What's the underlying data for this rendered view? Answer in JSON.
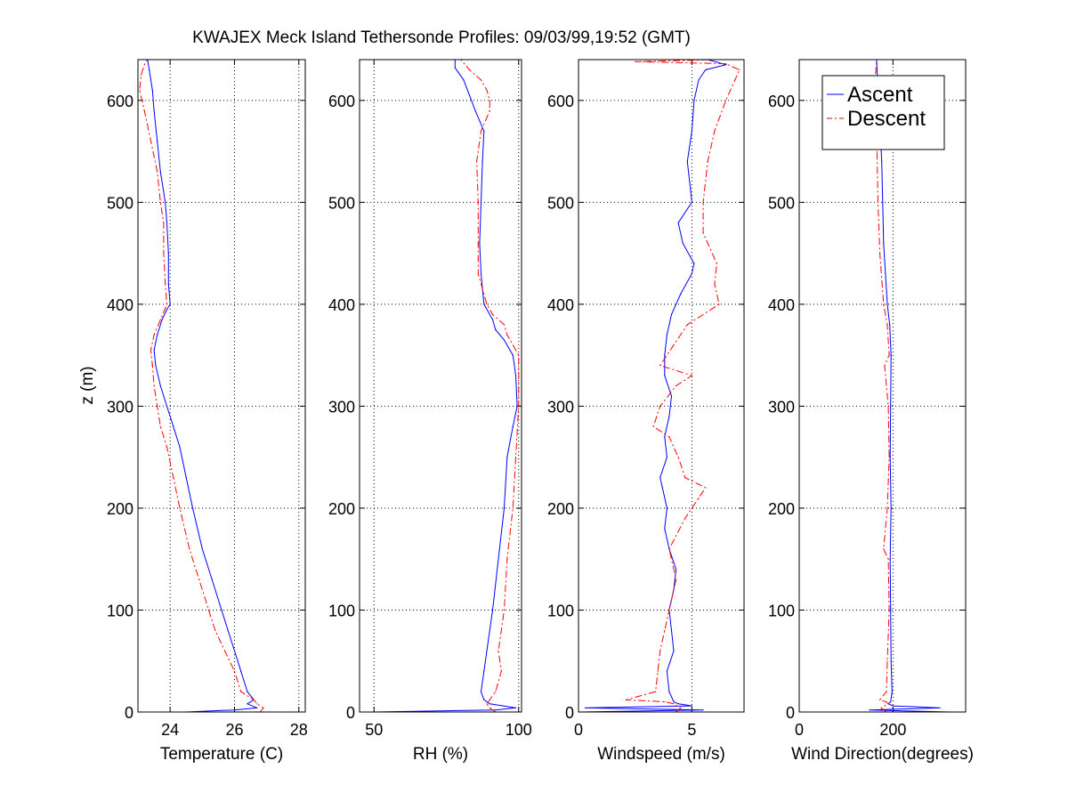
{
  "chart_data": {
    "type": "line",
    "title": "KWAJEX Meck Island Tethersonde Profiles: 09/03/99,19:52 (GMT)",
    "ylabel": "z (m)",
    "ylim": [
      0,
      640
    ],
    "yticks": [
      0,
      100,
      200,
      300,
      400,
      500,
      600
    ],
    "grid": true,
    "legend": {
      "panel": 3,
      "placement": "top-right",
      "entries": [
        {
          "name": "Ascent",
          "color": "#0000ff",
          "style": "solid"
        },
        {
          "name": "Descent",
          "color": "#ff0000",
          "style": "dashdot"
        }
      ]
    },
    "panels": [
      {
        "xlabel": "Temperature (C)",
        "xlim": [
          23.0,
          28.2
        ],
        "xticks": [
          24,
          26,
          28
        ],
        "series": [
          {
            "name": "Ascent",
            "z": [
              0,
              2,
              4,
              8,
              12,
              20,
              40,
              60,
              80,
              100,
              130,
              160,
              200,
              230,
              260,
              280,
              300,
              320,
              340,
              355,
              370,
              385,
              395,
              400,
              420,
              450,
              480,
              500,
              530,
              560,
              590,
              610,
              630,
              640
            ],
            "values": [
              24.5,
              26.0,
              26.7,
              26.4,
              26.6,
              26.4,
              26.2,
              26.0,
              25.8,
              25.6,
              25.3,
              25.0,
              24.7,
              24.5,
              24.3,
              24.1,
              23.9,
              23.7,
              23.55,
              23.5,
              23.6,
              23.75,
              23.9,
              24.0,
              23.95,
              23.95,
              23.9,
              23.85,
              23.7,
              23.6,
              23.5,
              23.45,
              23.35,
              23.3
            ]
          },
          {
            "name": "Descent",
            "z": [
              0,
              4,
              8,
              12,
              20,
              40,
              60,
              80,
              100,
              130,
              160,
              200,
              230,
              260,
              280,
              300,
              320,
              340,
              355,
              370,
              385,
              400,
              420,
              450,
              480,
              500,
              530,
              560,
              590,
              610,
              625,
              635,
              640
            ],
            "values": [
              26.8,
              26.9,
              26.7,
              26.6,
              26.2,
              26.0,
              25.7,
              25.4,
              25.2,
              24.9,
              24.6,
              24.3,
              24.1,
              23.9,
              23.7,
              23.6,
              23.5,
              23.45,
              23.4,
              23.5,
              23.7,
              23.9,
              23.85,
              23.8,
              23.8,
              23.7,
              23.6,
              23.4,
              23.2,
              23.05,
              23.1,
              23.2,
              23.3
            ]
          }
        ]
      },
      {
        "xlabel": "RH (%)",
        "xlim": [
          45,
          101
        ],
        "xticks": [
          50,
          100
        ],
        "series": [
          {
            "name": "Ascent",
            "z": [
              0,
              2,
              4,
              8,
              12,
              20,
              40,
              60,
              100,
              150,
              200,
              250,
              280,
              300,
              330,
              350,
              365,
              375,
              385,
              400,
              430,
              460,
              500,
              540,
              570,
              590,
              605,
              620,
              628,
              632,
              640
            ],
            "values": [
              50,
              92,
              99,
              90,
              88,
              87,
              88,
              89,
              91,
              93,
              95,
              96,
              98,
              99.5,
              99,
              98,
              95,
              92,
              91,
              88,
              87,
              86.5,
              87,
              87.5,
              88,
              85,
              83,
              81,
              79,
              78,
              78
            ]
          },
          {
            "name": "Descent",
            "z": [
              0,
              4,
              8,
              12,
              20,
              40,
              60,
              100,
              150,
              200,
              250,
              300,
              350,
              370,
              380,
              390,
              400,
              430,
              460,
              500,
              540,
              570,
              590,
              600,
              610,
              620,
              630,
              640
            ],
            "values": [
              92,
              90,
              89,
              90,
              92,
              94,
              93,
              95,
              96,
              98,
              99,
              100,
              100,
              96,
              95,
              91,
              89,
              86,
              86,
              86,
              85.5,
              87,
              90,
              90,
              89,
              87,
              83,
              80
            ]
          }
        ]
      },
      {
        "xlabel": "Windspeed (m/s)",
        "xlim": [
          0,
          7.3
        ],
        "xticks": [
          0,
          5
        ],
        "series": [
          {
            "name": "Ascent",
            "z": [
              0,
              2,
              4,
              6,
              8,
              10,
              20,
              40,
              60,
              80,
              100,
              120,
              140,
              160,
              180,
              200,
              220,
              230,
              250,
              270,
              290,
              310,
              330,
              350,
              370,
              390,
              410,
              430,
              440,
              460,
              480,
              500,
              540,
              570,
              600,
              620,
              630,
              635,
              640
            ],
            "values": [
              0.1,
              5.5,
              0.3,
              5.0,
              4.4,
              4.2,
              4.0,
              3.9,
              4.2,
              4.1,
              4.0,
              4.2,
              4.3,
              4.0,
              3.8,
              3.9,
              3.7,
              3.6,
              3.9,
              3.8,
              4.0,
              4.1,
              3.8,
              3.8,
              3.9,
              4.1,
              4.5,
              5.0,
              5.1,
              4.6,
              4.4,
              5.0,
              4.8,
              5.0,
              5.1,
              5.3,
              5.6,
              6.5,
              5.7
            ]
          },
          {
            "name": "Descent",
            "z": [
              0,
              4,
              8,
              10,
              12,
              20,
              40,
              60,
              80,
              100,
              130,
              160,
              190,
              210,
              220,
              230,
              250,
              270,
              280,
              300,
              320,
              330,
              340,
              360,
              380,
              400,
              420,
              440,
              470,
              500,
              540,
              570,
              600,
              620,
              630,
              636,
              638,
              640
            ],
            "values": [
              4.3,
              4.5,
              4.2,
              3.8,
              2.1,
              3.4,
              3.5,
              3.6,
              3.8,
              4.0,
              4.3,
              4.0,
              4.7,
              5.3,
              5.6,
              4.7,
              4.4,
              4.0,
              3.3,
              3.6,
              4.3,
              5.0,
              3.6,
              4.2,
              4.8,
              6.2,
              6.0,
              6.1,
              5.5,
              5.5,
              5.7,
              6.0,
              6.5,
              6.9,
              7.1,
              6.5,
              2.5,
              6.0
            ]
          }
        ]
      },
      {
        "xlabel": "Wind Direction(degrees)",
        "xlim": [
          0,
          355
        ],
        "xticks": [
          0,
          200
        ],
        "series": [
          {
            "name": "Ascent",
            "z": [
              0,
              2,
              4,
              6,
              8,
              10,
              20,
              50,
              100,
              150,
              200,
              250,
              300,
              350,
              380,
              400,
              430,
              460,
              500,
              540,
              570,
              600,
              620,
              640
            ],
            "values": [
              320,
              150,
              300,
              200,
              190,
              195,
              198,
              196,
              195,
              194,
              196,
              194,
              195,
              196,
              193,
              188,
              184,
              180,
              178,
              176,
              173,
              170,
              167,
              165
            ]
          },
          {
            "name": "Descent",
            "z": [
              0,
              4,
              8,
              10,
              12,
              20,
              50,
              100,
              150,
              160,
              200,
              250,
              300,
              340,
              350,
              380,
              400,
              450,
              500,
              550,
              600,
              620,
              640
            ],
            "values": [
              185,
              175,
              190,
              185,
              172,
              186,
              188,
              192,
              190,
              180,
              188,
              192,
              190,
              182,
              192,
              188,
              180,
              172,
              168,
              166,
              164,
              162,
              165
            ]
          }
        ]
      }
    ]
  }
}
